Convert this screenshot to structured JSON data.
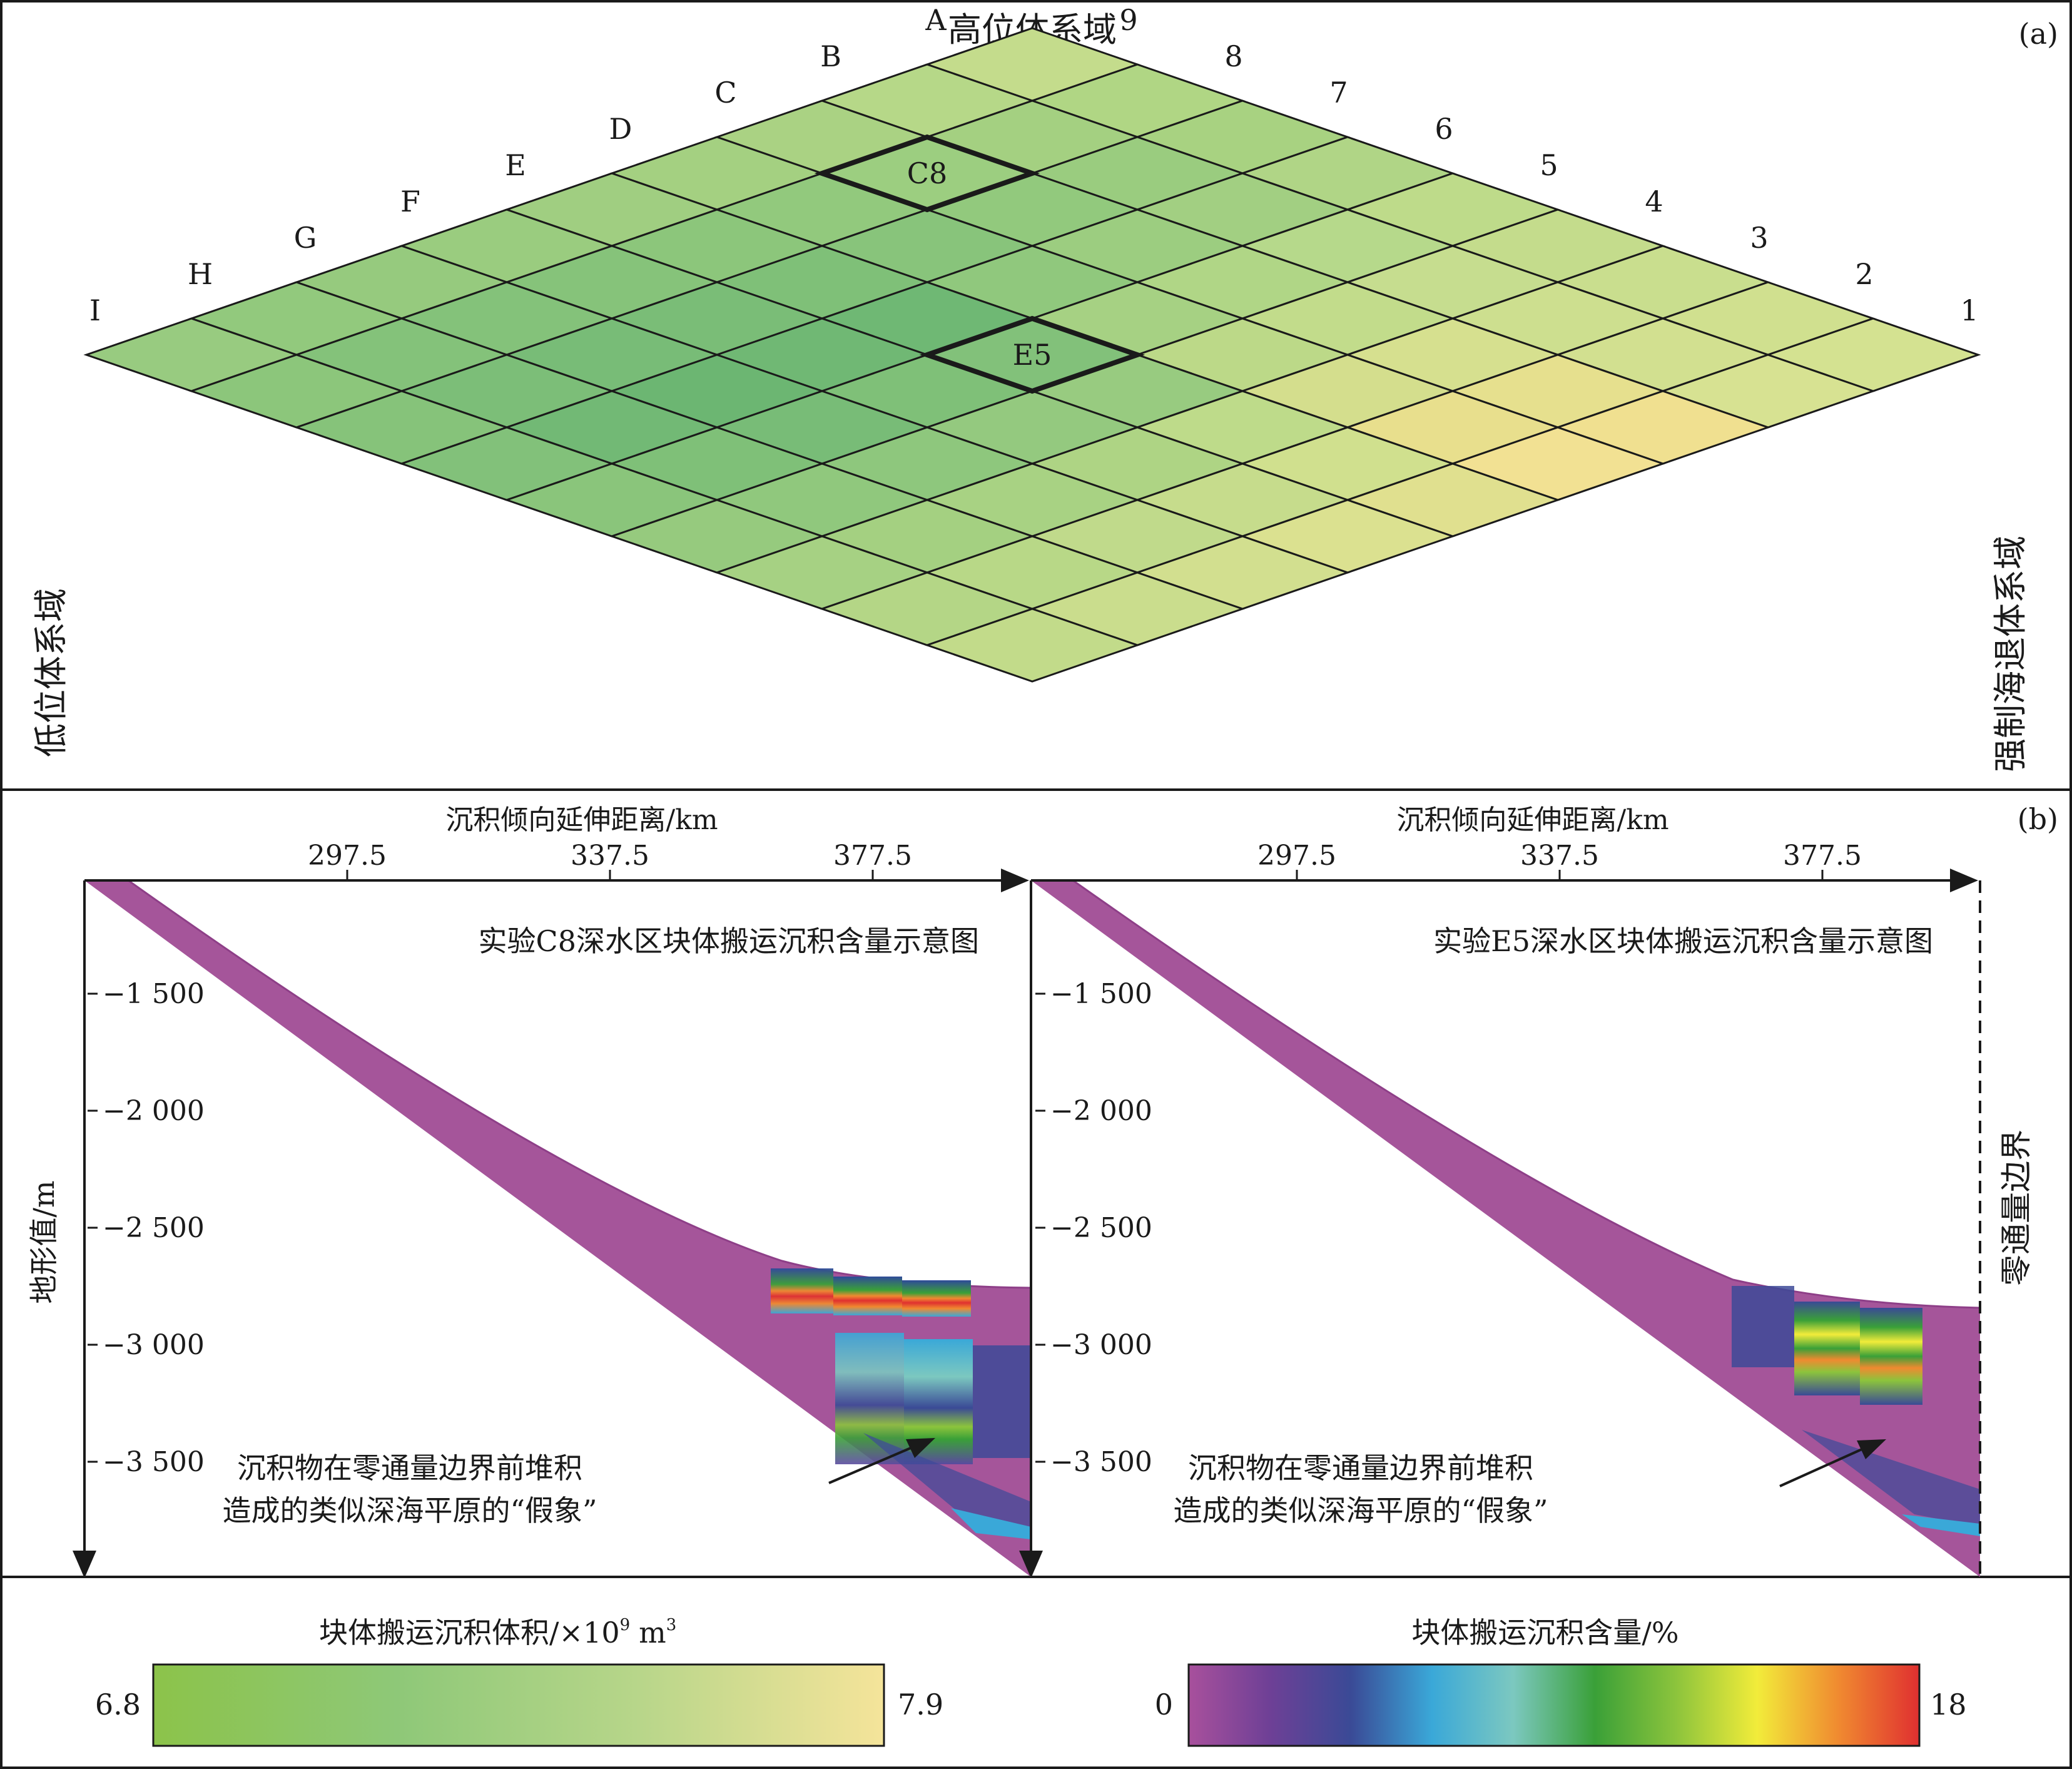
{
  "panel_a": {
    "label": "(a)",
    "top_label": "高位体系域",
    "left_label": "低位体系域",
    "right_label": "强制海退体系域",
    "letters": [
      "A",
      "B",
      "C",
      "D",
      "E",
      "F",
      "G",
      "H",
      "I"
    ],
    "numbers": [
      "1",
      "2",
      "3",
      "4",
      "5",
      "6",
      "7",
      "8",
      "9"
    ],
    "highlight_labels": [
      "C8",
      "E5"
    ],
    "cell_colors": [
      [
        "#c4dc8c",
        "#b0d684",
        "#a8d281",
        "#b0d586",
        "#bedb8a",
        "#c4dc8c",
        "#c9de8e",
        "#d0e08f",
        "#d4e291"
      ],
      [
        "#b6d888",
        "#a4d081",
        "#9acc7f",
        "#a2cf82",
        "#b6d98b",
        "#c6dd8f",
        "#cddf8f",
        "#d2e090",
        "#d7e292"
      ],
      [
        "#aad283",
        "#9cce80",
        "#92c97d",
        "#9ccd80",
        "#b0d686",
        "#c2dc8b",
        "#d6e08f",
        "#e6e08e",
        "#f0e090"
      ],
      [
        "#a4d081",
        "#92c97d",
        "#88c47b",
        "#90c87d",
        "#a6d183",
        "#bcd988",
        "#d4de8d",
        "#e8df8d",
        "#f2e193"
      ],
      [
        "#a0ce81",
        "#8cc67b",
        "#7fc078",
        "#6fb874",
        "#82c17a",
        "#98cb80",
        "#bedb8a",
        "#d0e08e",
        "#e0e08f"
      ],
      [
        "#9acc7f",
        "#86c37a",
        "#7abd77",
        "#70b874",
        "#7fc078",
        "#94c97f",
        "#aed484",
        "#c6dc8c",
        "#dbe190"
      ],
      [
        "#96ca7e",
        "#84c27a",
        "#78bc77",
        "#6cb672",
        "#78bc77",
        "#8ec77d",
        "#a8d283",
        "#c0da8b",
        "#d2df8f"
      ],
      [
        "#92c97d",
        "#84c27a",
        "#7cbe78",
        "#72b975",
        "#7fc078",
        "#90c87d",
        "#a4d081",
        "#b8d887",
        "#cadd8d"
      ],
      [
        "#98cb80",
        "#8cc67b",
        "#86c37a",
        "#82c17a",
        "#8ac57b",
        "#96ca7e",
        "#a6d183",
        "#b4d686",
        "#c2db8a"
      ]
    ]
  },
  "panel_b": {
    "label": "(b)",
    "left_chart": {
      "title": "实验C8深水区块体搬运沉积含量示意图",
      "xlabel": "沉积倾向延伸距离/km",
      "xticks": [
        "297.5",
        "337.5",
        "377.5"
      ],
      "ylabel": "地形值/m",
      "yticks": [
        "−1 500",
        "−2 000",
        "−2 500",
        "−3 000",
        "−3 500"
      ],
      "annotation_line1": "沉积物在零通量边界前堆积",
      "annotation_line2": "造成的类似深海平原的“假象”"
    },
    "right_chart": {
      "title": "实验E5深水区块体搬运沉积含量示意图",
      "xlabel": "沉积倾向延伸距离/km",
      "xticks": [
        "297.5",
        "337.5",
        "377.5"
      ],
      "yticks": [
        "−1 500",
        "−2 000",
        "−2 500",
        "−3 000",
        "−3 500"
      ],
      "boundary_label": "零通量边界",
      "annotation_line1": "沉积物在零通量边界前堆积",
      "annotation_line2": "造成的类似深海平原的“假象”"
    }
  },
  "legend_volume": {
    "title_main": "块体搬运沉积体积/",
    "title_times": "×",
    "title_base": "10",
    "title_exp": "9",
    "title_unit": "m",
    "title_unit_exp": "3",
    "min": "6.8",
    "max": "7.9",
    "stops": [
      "#8cc34a",
      "#8ec878",
      "#b8d68a",
      "#f5e49a"
    ]
  },
  "legend_content": {
    "title": "块体搬运沉积含量/%",
    "min": "0",
    "max": "18",
    "stops": [
      "#a8509c",
      "#6e4096",
      "#3a4a96",
      "#3aa8d8",
      "#7cc8c0",
      "#3aa038",
      "#8cc43c",
      "#f2ec3a",
      "#f08a30",
      "#e03030"
    ]
  },
  "colors": {
    "mtd_base": "#a5559a",
    "line": "#1a1a1a"
  }
}
